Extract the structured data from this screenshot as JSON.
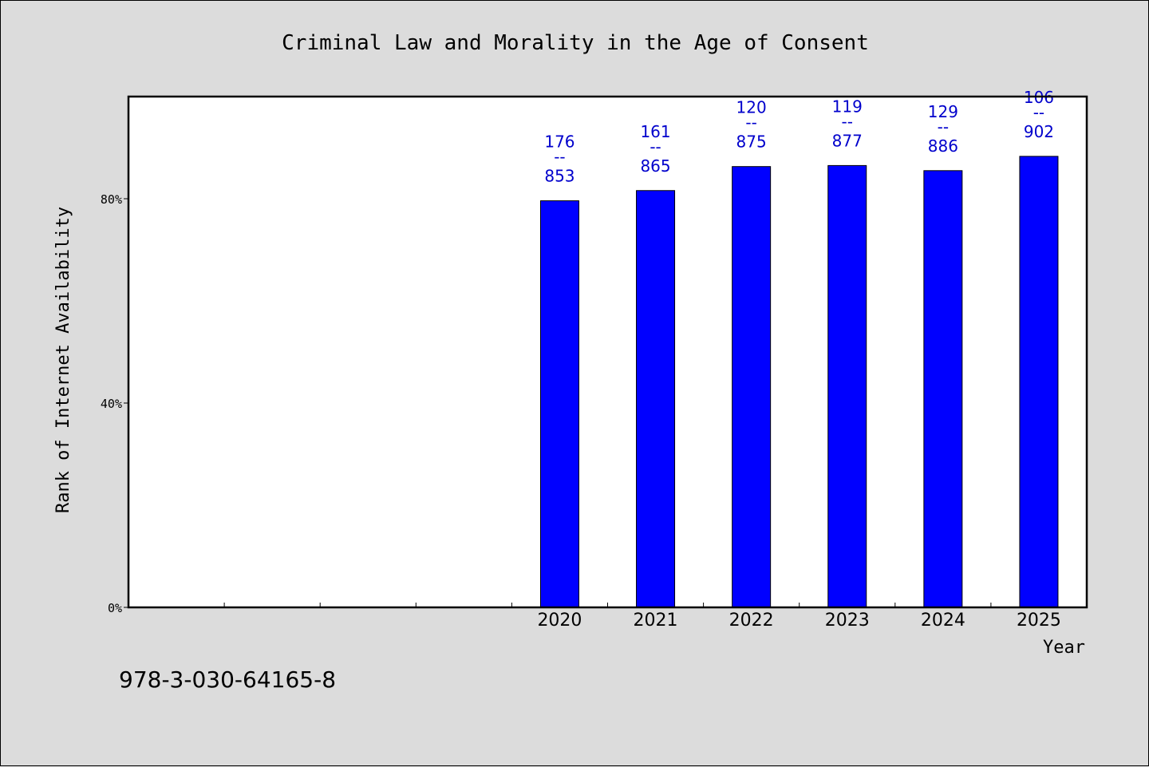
{
  "chart_data": {
    "type": "bar",
    "title": "Criminal Law and Morality in the Age of Consent",
    "xlabel": "Year",
    "ylabel": "Rank of Internet Availability",
    "categories": [
      "",
      "",
      "",
      "",
      "2020",
      "2021",
      "2022",
      "2023",
      "2024",
      "2025"
    ],
    "values": [
      null,
      null,
      null,
      null,
      79.6,
      81.6,
      86.3,
      86.5,
      85.5,
      88.3
    ],
    "bar_labels": [
      {
        "top": "",
        "bottom": ""
      },
      {
        "top": "",
        "bottom": ""
      },
      {
        "top": "",
        "bottom": ""
      },
      {
        "top": "",
        "bottom": ""
      },
      {
        "top": "176",
        "bottom": "853"
      },
      {
        "top": "161",
        "bottom": "865"
      },
      {
        "top": "120",
        "bottom": "875"
      },
      {
        "top": "119",
        "bottom": "877"
      },
      {
        "top": "129",
        "bottom": "886"
      },
      {
        "top": "106",
        "bottom": "902"
      }
    ],
    "label_separator": "--",
    "yticks": [
      0,
      40,
      80
    ],
    "ytick_labels": [
      "0%",
      "40%",
      "80%"
    ],
    "ylim": [
      0,
      100
    ],
    "bar_color": "#0000ff",
    "label_color": "#0000cc",
    "grid": false,
    "legend": "none"
  },
  "footer": {
    "isbn": "978-3-030-64165-8"
  }
}
